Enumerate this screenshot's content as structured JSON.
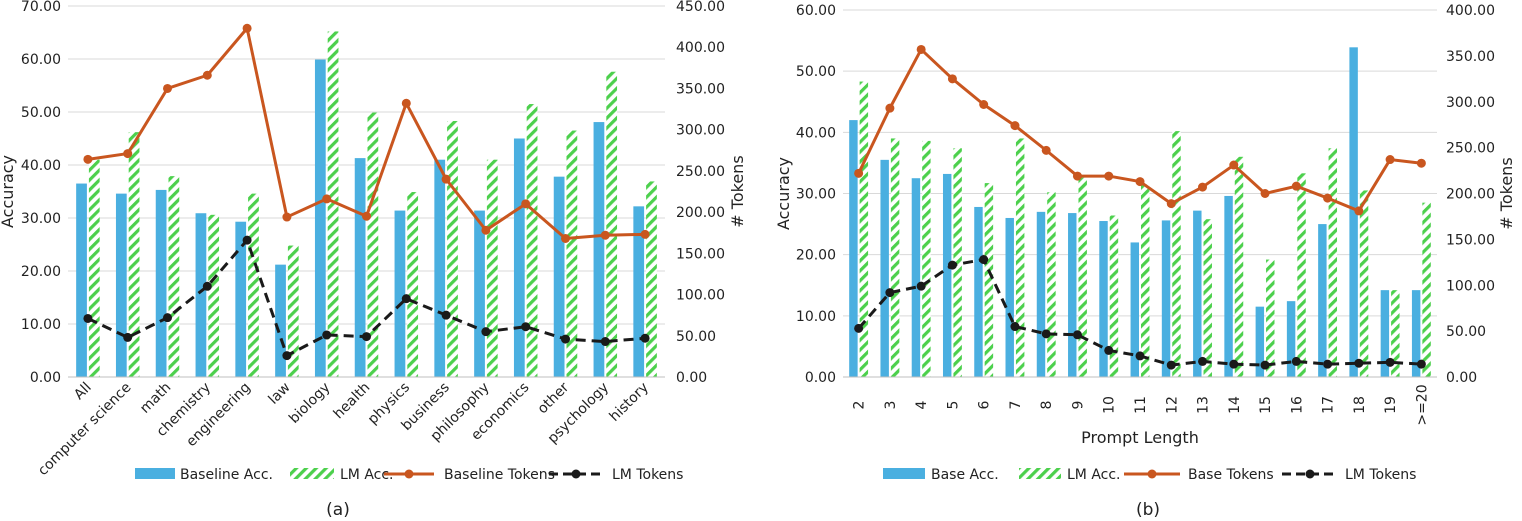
{
  "chart_data": [
    {
      "type": "bar",
      "title": "",
      "caption": "(a)",
      "xlabel": "",
      "ylabel": "Accuracy",
      "y2label": "# Tokens",
      "ylim": [
        0,
        70
      ],
      "y2lim": [
        0,
        450
      ],
      "yticks": [
        "0.00",
        "10.00",
        "20.00",
        "30.00",
        "40.00",
        "50.00",
        "60.00",
        "70.00"
      ],
      "y2ticks": [
        "0.00",
        "50.00",
        "100.00",
        "150.00",
        "200.00",
        "250.00",
        "300.00",
        "350.00",
        "400.00",
        "450.00"
      ],
      "grid": true,
      "legend_position": "bottom",
      "categories": [
        "All",
        "computer science",
        "math",
        "chemistry",
        "engineering",
        "law",
        "biology",
        "health",
        "physics",
        "business",
        "philosophy",
        "economics",
        "other",
        "psychology",
        "history"
      ],
      "series": [
        {
          "name": "Baseline Acc.",
          "kind": "bar",
          "axis": "left",
          "color": "#4aafe0",
          "values": [
            36.5,
            34.6,
            35.3,
            30.9,
            29.3,
            21.2,
            59.9,
            41.3,
            31.4,
            41.0,
            31.4,
            45.0,
            37.8,
            48.1,
            32.2
          ]
        },
        {
          "name": "LM Acc.",
          "kind": "hatched-bar",
          "axis": "left",
          "color": "#4cd04c",
          "values": [
            41.0,
            46.2,
            37.9,
            30.6,
            34.6,
            24.8,
            65.2,
            49.9,
            34.9,
            48.3,
            41.0,
            51.5,
            46.5,
            57.6,
            36.9
          ]
        },
        {
          "name": "Baseline Tokens",
          "kind": "line",
          "axis": "right",
          "color": "#c9561f",
          "values": [
            264,
            271,
            350,
            366,
            423,
            194,
            216,
            195,
            332,
            240,
            178,
            210,
            168,
            172,
            173
          ]
        },
        {
          "name": "LM Tokens",
          "kind": "dashed-line",
          "axis": "right",
          "color": "#1a1a1a",
          "values": [
            71,
            48,
            72,
            110,
            166,
            26,
            51,
            49,
            95,
            75,
            55,
            61,
            46,
            43,
            47
          ]
        }
      ]
    },
    {
      "type": "bar",
      "title": "",
      "caption": "(b)",
      "xlabel": "Prompt Length",
      "ylabel": "Accuracy",
      "y2label": "# Tokens",
      "ylim": [
        0,
        60
      ],
      "y2lim": [
        0,
        400
      ],
      "yticks": [
        "0.00",
        "10.00",
        "20.00",
        "30.00",
        "40.00",
        "50.00",
        "60.00"
      ],
      "y2ticks": [
        "0.00",
        "50.00",
        "100.00",
        "150.00",
        "200.00",
        "250.00",
        "300.00",
        "350.00",
        "400.00"
      ],
      "grid": true,
      "legend_position": "bottom",
      "categories": [
        "2",
        "3",
        "4",
        "5",
        "6",
        "7",
        "8",
        "9",
        "10",
        "11",
        "12",
        "13",
        "14",
        "15",
        "16",
        "17",
        "18",
        "19",
        ">=20"
      ],
      "series": [
        {
          "name": "Base Acc.",
          "kind": "bar",
          "axis": "left",
          "color": "#4aafe0",
          "values": [
            42.0,
            35.5,
            32.5,
            33.2,
            27.8,
            26.0,
            27.0,
            26.8,
            25.5,
            22.0,
            25.6,
            27.2,
            29.6,
            11.5,
            12.4,
            25.0,
            53.9,
            14.2,
            14.2
          ]
        },
        {
          "name": "LM Acc.",
          "kind": "hatched-bar",
          "axis": "left",
          "color": "#4cd04c",
          "values": [
            48.3,
            39.0,
            38.6,
            37.4,
            31.7,
            39.0,
            30.2,
            32.6,
            26.4,
            31.5,
            40.2,
            25.8,
            36.0,
            19.2,
            33.3,
            37.4,
            30.5,
            14.2,
            28.5
          ]
        },
        {
          "name": "Base Tokens",
          "kind": "line",
          "axis": "right",
          "color": "#c9561f",
          "values": [
            222,
            293,
            357,
            325,
            297,
            274,
            247,
            219,
            219,
            213,
            189,
            207,
            231,
            200,
            208,
            195,
            181,
            237,
            233
          ]
        },
        {
          "name": "LM Tokens",
          "kind": "dashed-line",
          "axis": "right",
          "color": "#1a1a1a",
          "values": [
            53,
            92,
            99,
            122,
            128,
            55,
            47,
            46,
            29,
            23,
            13,
            17,
            14,
            13,
            17,
            14,
            15,
            16,
            14
          ]
        }
      ]
    }
  ]
}
